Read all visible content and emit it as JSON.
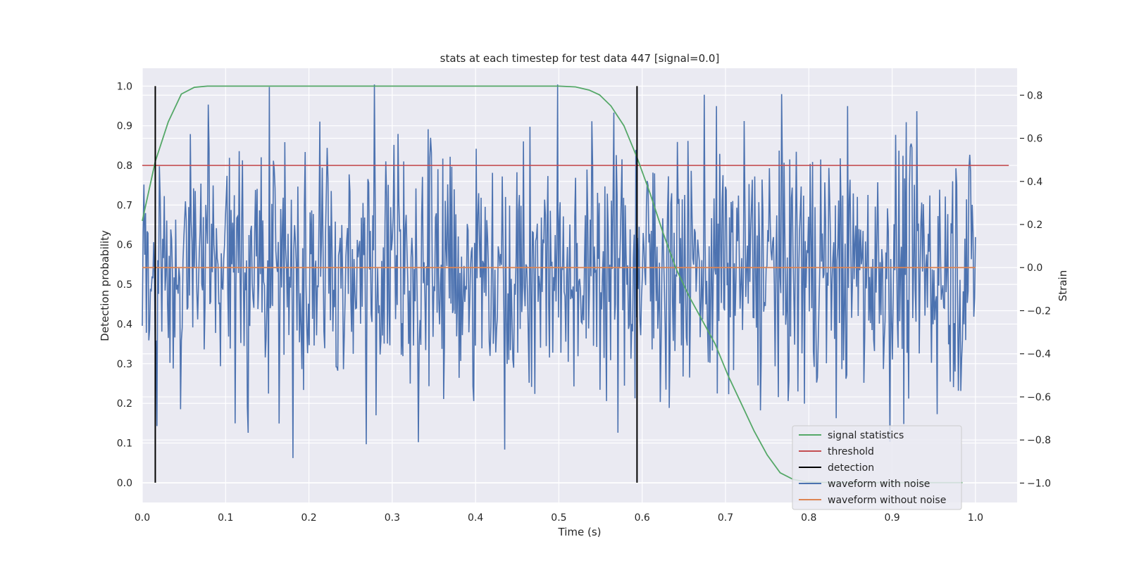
{
  "chart_data": {
    "type": "line",
    "title": "stats at each timestep for test data 447 [signal=0.0]",
    "xlabel": "Time (s)",
    "ylabel": "Detection probability",
    "ylabel_right": "Strain",
    "xlim": [
      0.0,
      1.05
    ],
    "ylim": [
      -0.05,
      1.045
    ],
    "ylim_right": [
      -1.09,
      0.925
    ],
    "x_ticks": [
      0.0,
      0.1,
      0.2,
      0.3,
      0.4,
      0.5,
      0.6,
      0.7,
      0.8,
      0.9,
      1.0
    ],
    "x_tick_labels": [
      "0.0",
      "0.1",
      "0.2",
      "0.3",
      "0.4",
      "0.5",
      "0.6",
      "0.7",
      "0.8",
      "0.9",
      "1.0"
    ],
    "y_ticks": [
      0.0,
      0.1,
      0.2,
      0.3,
      0.4,
      0.5,
      0.6,
      0.7,
      0.8,
      0.9,
      1.0
    ],
    "y_tick_labels": [
      "0.0",
      "0.1",
      "0.2",
      "0.3",
      "0.4",
      "0.5",
      "0.6",
      "0.7",
      "0.8",
      "0.9",
      "1.0"
    ],
    "y_right_ticks": [
      -1.0,
      -0.8,
      -0.6,
      -0.4,
      -0.2,
      0.0,
      0.2,
      0.4,
      0.6,
      0.8
    ],
    "y_right_tick_labels": [
      "−1.0",
      "−0.8",
      "−0.6",
      "−0.4",
      "−0.2",
      "0.0",
      "0.2",
      "0.4",
      "0.6",
      "0.8"
    ],
    "grid": true,
    "legend_position": "lower-right",
    "background": "#eaeaf2",
    "series": [
      {
        "name": "signal statistics",
        "color": "#55a868",
        "axis": "left",
        "x": [
          0.0,
          0.0156,
          0.0312,
          0.0469,
          0.0625,
          0.0781,
          0.1,
          0.2,
          0.3,
          0.4,
          0.5,
          0.52,
          0.5363,
          0.5488,
          0.5625,
          0.5781,
          0.5938,
          0.6094,
          0.625,
          0.6406,
          0.6563,
          0.6719,
          0.6875,
          0.7031,
          0.7188,
          0.7344,
          0.75,
          0.7656,
          0.7813,
          0.7969,
          0.8125,
          0.8281,
          0.8438,
          0.8594,
          0.875,
          0.8906,
          0.9063,
          0.9219,
          0.9375,
          0.9531,
          0.9688,
          0.9844
        ],
        "y": [
          0.66,
          0.81,
          0.91,
          0.98,
          0.997,
          1.0,
          1.0,
          1.0,
          1.0,
          1.0,
          1.0,
          0.998,
          0.99,
          0.978,
          0.95,
          0.9,
          0.82,
          0.73,
          0.63,
          0.54,
          0.47,
          0.41,
          0.35,
          0.27,
          0.2,
          0.13,
          0.07,
          0.025,
          0.008,
          0.002,
          0.001,
          0.0,
          0.0,
          0.0,
          0.0,
          0.0,
          0.0,
          0.0,
          0.0,
          0.0,
          0.0,
          0.0
        ]
      },
      {
        "name": "threshold",
        "color": "#c44e52",
        "axis": "left",
        "x": [
          0.0,
          1.04
        ],
        "y": [
          0.8,
          0.8
        ]
      },
      {
        "name": "detection",
        "color": "#000000",
        "axis": "left",
        "segments": [
          {
            "x": 0.0156,
            "y": [
              0.0,
              1.0
            ]
          },
          {
            "x": 0.5938,
            "y": [
              0.0,
              1.0
            ]
          }
        ]
      },
      {
        "name": "waveform with noise",
        "color": "#4c72b0",
        "axis": "right",
        "points": 1024,
        "x_range": [
          0.0,
          1.0
        ],
        "y_range": [
          -1.03,
          0.85
        ],
        "y_mean": 0.0,
        "y_std": 0.3
      },
      {
        "name": "waveform without noise",
        "color": "#dd8452",
        "axis": "right",
        "x": [
          0.0,
          1.0
        ],
        "y": [
          0.0,
          0.0
        ]
      }
    ]
  }
}
